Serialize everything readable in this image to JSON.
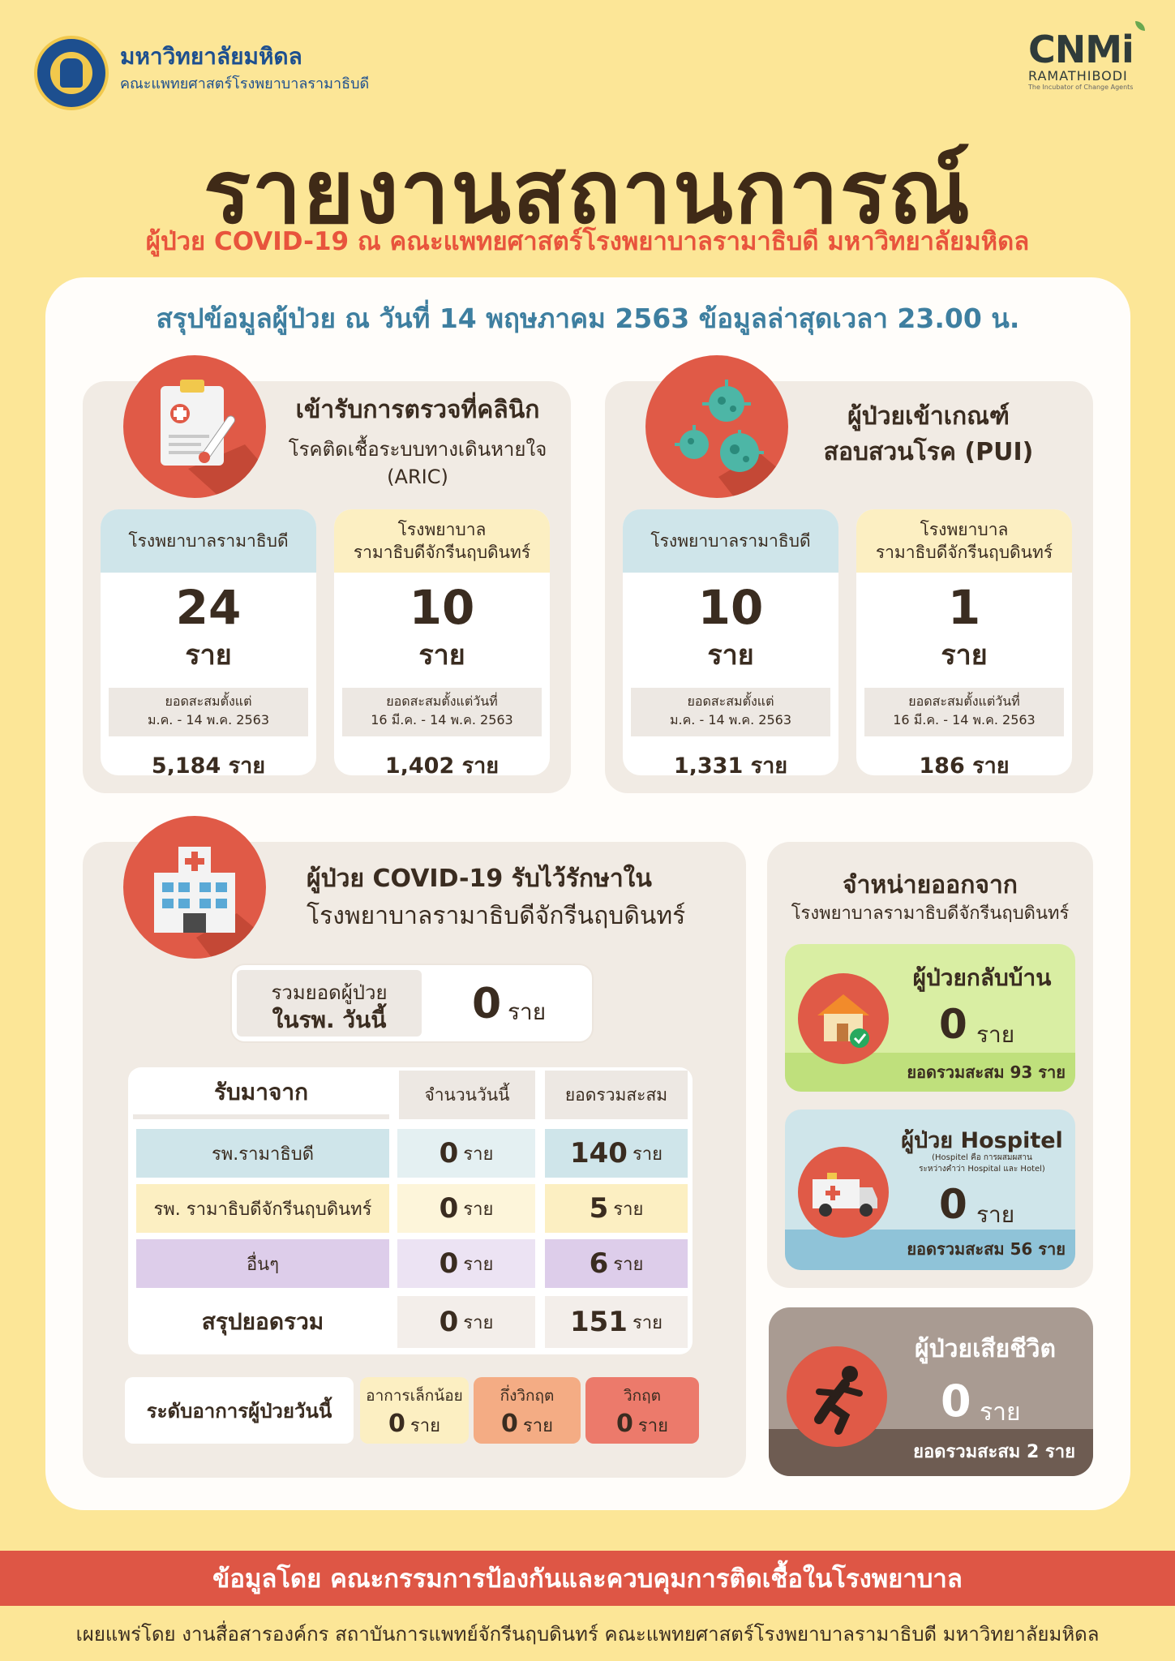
{
  "header": {
    "university": "มหาวิทยาลัยมหิดล",
    "faculty": "คณะแพทยศาสตร์โรงพยาบาลรามาธิบดี",
    "cnmi_logo": "CNMi",
    "cnmi_name": "RAMATHIBODI",
    "cnmi_tagline": "The Incubator of Change Agents"
  },
  "title": "รายงานสถานการณ์",
  "subtitle": "ผู้ป่วย COVID-19 ณ คณะแพทยศาสตร์โรงพยาบาลรามาธิบดี มหาวิทยาลัยมหิดล",
  "summary": "สรุปข้อมูลผู้ป่วย ณ วันที่ 14 พฤษภาคม 2563 ข้อมูลล่าสุดเวลา 23.00 น.",
  "aric": {
    "title": "เข้ารับการตรวจที่คลินิก",
    "subtitle1": "โรคติดเชื้อระบบทางเดินหายใจ",
    "subtitle2": "(ARIC)",
    "cards": [
      {
        "head": "โรงพยาบาลรามาธิบดี",
        "value": "24",
        "unit": "ราย",
        "note1": "ยอดสะสมตั้งแต่",
        "note2": "ม.ค. - 14 พ.ค. 2563",
        "total": "5,184 ราย"
      },
      {
        "head": "โรงพยาบาล",
        "head2": "รามาธิบดีจักรีนฤบดินทร์",
        "value": "10",
        "unit": "ราย",
        "note1": "ยอดสะสมตั้งแต่วันที่",
        "note2": "16 มี.ค. - 14 พ.ค. 2563",
        "total": "1,402 ราย"
      }
    ]
  },
  "pui": {
    "title1": "ผู้ป่วยเข้าเกณฑ์",
    "title2": "สอบสวนโรค (PUI)",
    "cards": [
      {
        "head": "โรงพยาบาลรามาธิบดี",
        "value": "10",
        "unit": "ราย",
        "note1": "ยอดสะสมตั้งแต่",
        "note2": "ม.ค. - 14 พ.ค. 2563",
        "total": "1,331 ราย"
      },
      {
        "head": "โรงพยาบาล",
        "head2": "รามาธิบดีจักรีนฤบดินทร์",
        "value": "1",
        "unit": "ราย",
        "note1": "ยอดสะสมตั้งแต่วันที่",
        "note2": "16 มี.ค. - 14 พ.ค. 2563",
        "total": "186 ราย"
      }
    ]
  },
  "admitted": {
    "title1": "ผู้ป่วย COVID-19 รับไว้รักษาใน",
    "title2": "โรงพยาบาลรามาธิบดีจักรีนฤบดินทร์",
    "today_label1": "รวมยอดผู้ป่วย",
    "today_label2": "ในรพ. วันนี้",
    "today_value": "0",
    "today_unit": "ราย",
    "table": {
      "headers": [
        "รับมาจาก",
        "จำนวนวันนี้",
        "ยอดรวมสะสม"
      ],
      "rows": [
        {
          "source": "รพ.รามาธิบดี",
          "today": "0",
          "total": "140"
        },
        {
          "source": "รพ. รามาธิบดีจักรีนฤบดินทร์",
          "today": "0",
          "total": "5"
        },
        {
          "source": "อื่นๆ",
          "today": "0",
          "total": "6"
        }
      ],
      "sum_label": "สรุปยอดรวม",
      "sum_today": "0",
      "sum_total": "151",
      "unit": "ราย"
    },
    "severity": {
      "label": "ระดับอาการผู้ป่วยวันนี้",
      "levels": [
        {
          "name": "อาการเล็กน้อย",
          "value": "0",
          "unit": "ราย",
          "color": "#fcefc2"
        },
        {
          "name": "กึ่งวิกฤต",
          "value": "0",
          "unit": "ราย",
          "color": "#f4ac84"
        },
        {
          "name": "วิกฤต",
          "value": "0",
          "unit": "ราย",
          "color": "#ec7a6b"
        }
      ]
    }
  },
  "discharge": {
    "title": "จำหน่ายออกจาก",
    "subtitle": "โรงพยาบาลรามาธิบดีจักรีนฤบดินทร์",
    "home": {
      "title": "ผู้ป่วยกลับบ้าน",
      "value": "0",
      "unit": "ราย",
      "total": "ยอดรวมสะสม 93 ราย"
    },
    "hospitel": {
      "title": "ผู้ป่วย Hospitel",
      "note1": "(Hospitel คือ การผสมผสาน",
      "note2": "ระหว่างคำว่า Hospital และ Hotel)",
      "value": "0",
      "unit": "ราย",
      "total": "ยอดรวมสะสม 56 ราย"
    }
  },
  "deceased": {
    "title": "ผู้ป่วยเสียชีวิต",
    "value": "0",
    "unit": "ราย",
    "total": "ยอดรวมสะสม 2 ราย"
  },
  "footer": {
    "credit": "ข้อมูลโดย คณะกรรมการป้องกันและควบคุมการติดเชื้อในโรงพยาบาล",
    "publisher": "เผยแพร่โดย งานสื่อสารองค์กร สถาบันการแพทย์จักรีนฤบดินทร์ คณะแพทยศาสตร์โรงพยาบาลรามาธิบดี มหาวิทยาลัยมหิดล"
  },
  "colors": {
    "accent_red": "#de5645",
    "blue_text": "#3e7fa0",
    "background": "#fce697"
  }
}
